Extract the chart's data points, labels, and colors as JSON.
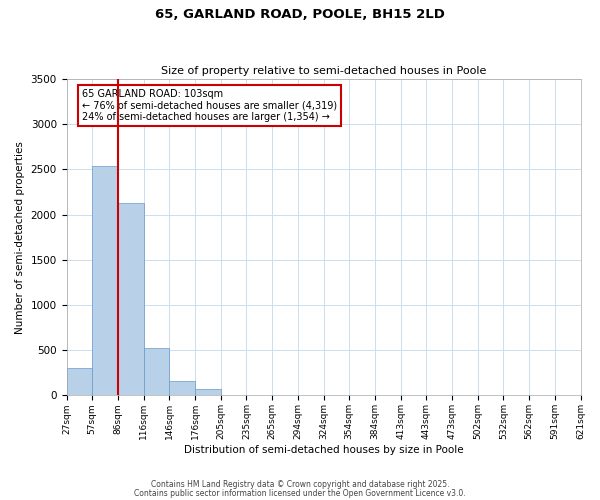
{
  "title": "65, GARLAND ROAD, POOLE, BH15 2LD",
  "subtitle": "Size of property relative to semi-detached houses in Poole",
  "xlabel": "Distribution of semi-detached houses by size in Poole",
  "ylabel": "Number of semi-detached properties",
  "bin_labels": [
    "27sqm",
    "57sqm",
    "86sqm",
    "116sqm",
    "146sqm",
    "176sqm",
    "205sqm",
    "235sqm",
    "265sqm",
    "294sqm",
    "324sqm",
    "354sqm",
    "384sqm",
    "413sqm",
    "443sqm",
    "473sqm",
    "502sqm",
    "532sqm",
    "562sqm",
    "591sqm",
    "621sqm"
  ],
  "bar_values": [
    300,
    2540,
    2130,
    520,
    155,
    70,
    0,
    0,
    0,
    0,
    0,
    0,
    0,
    0,
    0,
    0,
    0,
    0,
    0,
    0
  ],
  "bar_color": "#b8d0e8",
  "bar_edge_color": "#6699cc",
  "vline_x": 2,
  "vline_color": "#cc0000",
  "ylim": [
    0,
    3500
  ],
  "yticks": [
    0,
    500,
    1000,
    1500,
    2000,
    2500,
    3000,
    3500
  ],
  "num_bins": 21,
  "annotation_box_title": "65 GARLAND ROAD: 103sqm",
  "annotation_line1": "← 76% of semi-detached houses are smaller (4,319)",
  "annotation_line2": "24% of semi-detached houses are larger (1,354) →",
  "annotation_box_color": "#cc0000",
  "footer1": "Contains HM Land Registry data © Crown copyright and database right 2025.",
  "footer2": "Contains public sector information licensed under the Open Government Licence v3.0.",
  "bg_color": "#ffffff",
  "grid_color": "#ccdded"
}
